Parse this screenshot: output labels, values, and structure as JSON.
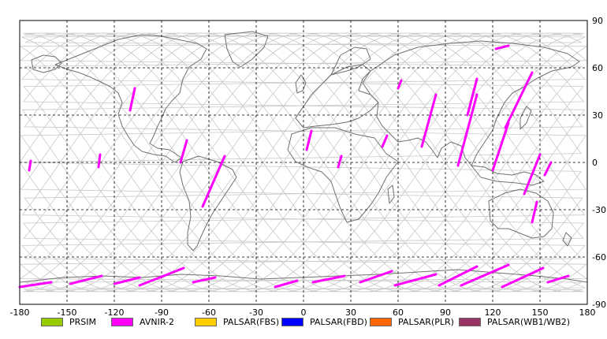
{
  "map": {
    "projection": "equirectangular",
    "lon_range": [
      -180,
      180
    ],
    "lat_range": [
      -90,
      90
    ],
    "lon_ticks": [
      "-180",
      "-150",
      "-120",
      "-90",
      "-60",
      "-30",
      "0",
      "30",
      "60",
      "90",
      "120",
      "150",
      "180"
    ],
    "lat_ticks": [
      "90",
      "60",
      "30",
      "0",
      "-30",
      "-60",
      "-90"
    ],
    "grid": "dashed",
    "colors": {
      "frame": "#000000",
      "grid": "#000000",
      "coast": "#707070",
      "orbit": "#c8c8c8"
    },
    "orbit_tracks": 28,
    "coverage_swaths": [
      {
        "sensor": "AVNIR-2",
        "from": [
          -110,
          33
        ],
        "to": [
          -107,
          47
        ]
      },
      {
        "sensor": "AVNIR-2",
        "from": [
          -78,
          0
        ],
        "to": [
          -74,
          14
        ]
      },
      {
        "sensor": "AVNIR-2",
        "from": [
          -64,
          -28
        ],
        "to": [
          -50,
          4
        ]
      },
      {
        "sensor": "AVNIR-2",
        "from": [
          -174,
          -5
        ],
        "to": [
          -173,
          1
        ]
      },
      {
        "sensor": "AVNIR-2",
        "from": [
          -130,
          -3
        ],
        "to": [
          -129,
          5
        ]
      },
      {
        "sensor": "AVNIR-2",
        "from": [
          2,
          8
        ],
        "to": [
          5,
          20
        ]
      },
      {
        "sensor": "AVNIR-2",
        "from": [
          22,
          -3
        ],
        "to": [
          24,
          4
        ]
      },
      {
        "sensor": "AVNIR-2",
        "from": [
          50,
          10
        ],
        "to": [
          53,
          17
        ]
      },
      {
        "sensor": "AVNIR-2",
        "from": [
          60,
          47
        ],
        "to": [
          62,
          52
        ]
      },
      {
        "sensor": "AVNIR-2",
        "from": [
          75,
          10
        ],
        "to": [
          84,
          43
        ]
      },
      {
        "sensor": "AVNIR-2",
        "from": [
          98,
          -2
        ],
        "to": [
          110,
          43
        ]
      },
      {
        "sensor": "AVNIR-2",
        "from": [
          104,
          30
        ],
        "to": [
          110,
          53
        ]
      },
      {
        "sensor": "AVNIR-2",
        "from": [
          120,
          -5
        ],
        "to": [
          130,
          25
        ]
      },
      {
        "sensor": "AVNIR-2",
        "from": [
          128,
          22
        ],
        "to": [
          145,
          57
        ]
      },
      {
        "sensor": "AVNIR-2",
        "from": [
          140,
          -20
        ],
        "to": [
          150,
          5
        ]
      },
      {
        "sensor": "AVNIR-2",
        "from": [
          153,
          -8
        ],
        "to": [
          157,
          0
        ]
      },
      {
        "sensor": "AVNIR-2",
        "from": [
          145,
          -38
        ],
        "to": [
          148,
          -25
        ]
      },
      {
        "sensor": "AVNIR-2",
        "from": [
          122,
          72
        ],
        "to": [
          130,
          74
        ]
      },
      {
        "sensor": "AVNIR-2",
        "from": [
          -180,
          -79
        ],
        "to": [
          -160,
          -76
        ]
      },
      {
        "sensor": "AVNIR-2",
        "from": [
          -148,
          -77
        ],
        "to": [
          -128,
          -72
        ]
      },
      {
        "sensor": "AVNIR-2",
        "from": [
          -120,
          -77
        ],
        "to": [
          -104,
          -73
        ]
      },
      {
        "sensor": "AVNIR-2",
        "from": [
          -104,
          -78
        ],
        "to": [
          -76,
          -67
        ]
      },
      {
        "sensor": "AVNIR-2",
        "from": [
          -70,
          -76
        ],
        "to": [
          -56,
          -73
        ]
      },
      {
        "sensor": "AVNIR-2",
        "from": [
          -18,
          -79
        ],
        "to": [
          -4,
          -75
        ]
      },
      {
        "sensor": "AVNIR-2",
        "from": [
          6,
          -76
        ],
        "to": [
          26,
          -72
        ]
      },
      {
        "sensor": "AVNIR-2",
        "from": [
          36,
          -76
        ],
        "to": [
          56,
          -69
        ]
      },
      {
        "sensor": "AVNIR-2",
        "from": [
          58,
          -78
        ],
        "to": [
          84,
          -71
        ]
      },
      {
        "sensor": "AVNIR-2",
        "from": [
          86,
          -78
        ],
        "to": [
          110,
          -66
        ]
      },
      {
        "sensor": "AVNIR-2",
        "from": [
          100,
          -78
        ],
        "to": [
          130,
          -65
        ]
      },
      {
        "sensor": "AVNIR-2",
        "from": [
          126,
          -79
        ],
        "to": [
          152,
          -67
        ]
      },
      {
        "sensor": "AVNIR-2",
        "from": [
          155,
          -76
        ],
        "to": [
          168,
          -72
        ]
      }
    ]
  },
  "legend": [
    {
      "label": "PRSIM",
      "color": "#99cc00"
    },
    {
      "label": "AVNIR-2",
      "color": "#ff00ff"
    },
    {
      "label": "PALSAR(FBS)",
      "color": "#ffcc00"
    },
    {
      "label": "PALSAR(FBD)",
      "color": "#0000ff"
    },
    {
      "label": "PALSAR(PLR)",
      "color": "#ff6600"
    },
    {
      "label": "PALSAR(WB1/WB2)",
      "color": "#993366"
    }
  ]
}
